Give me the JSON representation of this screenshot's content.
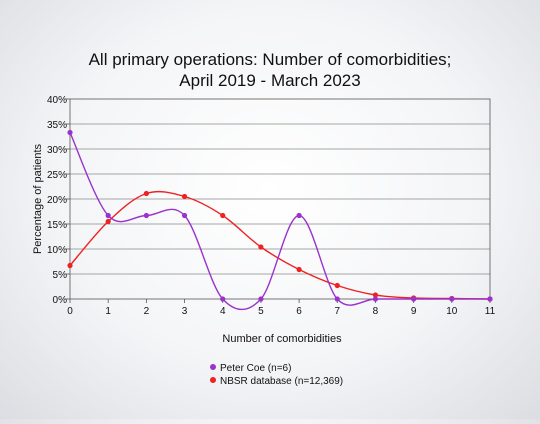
{
  "chart_data": {
    "type": "line",
    "title_lines": [
      "All primary operations: Number of comorbidities;",
      "April 2019 - March 2023"
    ],
    "xlabel": "Number of comorbidities",
    "ylabel": "Percentage of patients",
    "x": [
      0,
      1,
      2,
      3,
      4,
      5,
      6,
      7,
      8,
      9,
      10,
      11
    ],
    "xlim": [
      0,
      11
    ],
    "ylim": [
      0,
      40
    ],
    "yticks": [
      0,
      5,
      10,
      15,
      20,
      25,
      30,
      35,
      40
    ],
    "ytick_labels": [
      "0%",
      "5%",
      "10%",
      "15%",
      "20%",
      "25%",
      "30%",
      "35%",
      "40%"
    ],
    "grid": "horizontal",
    "legend_position": "bottom",
    "series": [
      {
        "name": "Peter Coe (n=6)",
        "color": "#9933cc",
        "values": [
          33.3,
          16.7,
          16.7,
          16.7,
          0,
          0,
          16.7,
          0,
          0,
          0,
          0,
          0
        ]
      },
      {
        "name": "NBSR database (n=12,369)",
        "color": "#ee2222",
        "values": [
          6.7,
          15.5,
          21.1,
          20.5,
          16.7,
          10.4,
          5.9,
          2.7,
          0.8,
          0.2,
          0.1,
          0
        ]
      }
    ]
  }
}
